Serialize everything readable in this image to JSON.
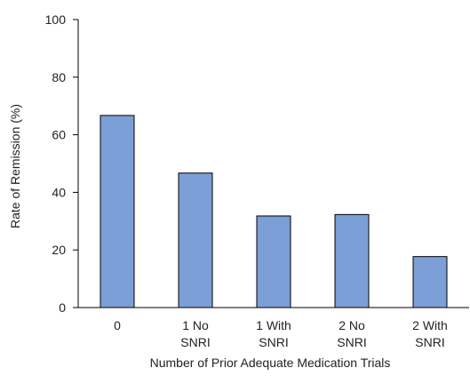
{
  "chart_data": {
    "type": "bar",
    "title": "",
    "xlabel": "Number of Prior Adequate Medication Trials",
    "ylabel": "Rate of Remission (%)",
    "categories": [
      [
        "0"
      ],
      [
        "1 No",
        "SNRI"
      ],
      [
        "1 With",
        "SNRI"
      ],
      [
        "2 No",
        "SNRI"
      ],
      [
        "2 With",
        "SNRI"
      ]
    ],
    "values": [
      66.7,
      46.7,
      31.8,
      32.3,
      17.7
    ],
    "ylim": [
      0,
      100
    ],
    "yticks": [
      0,
      20,
      40,
      60,
      80,
      100
    ],
    "grid": false,
    "legend": "none",
    "bar_color": "#7b9fd6",
    "bar_edge_color": "#000000"
  }
}
